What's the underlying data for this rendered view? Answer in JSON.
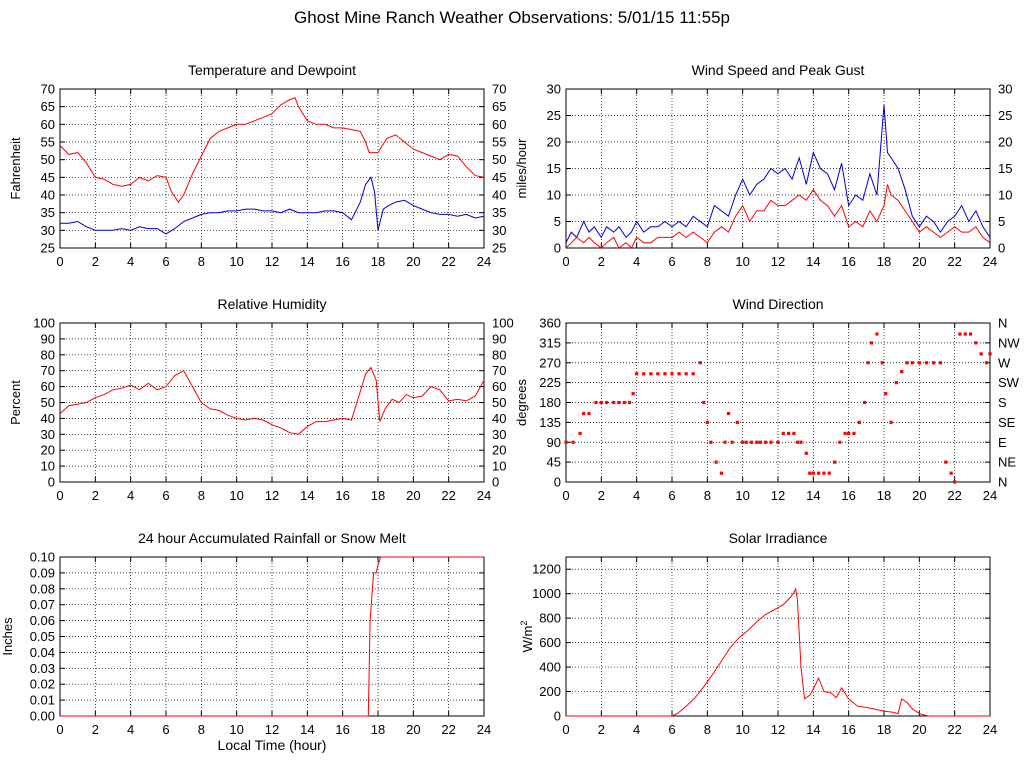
{
  "page": {
    "title": "Ghost Mine Ranch Weather Observations: 5/01/15 11:55p"
  },
  "colors": {
    "red": "#ff0000",
    "blue": "#0000cc",
    "grid": "#000000",
    "frame": "#000000"
  },
  "chart_data": [
    {
      "type": "line",
      "title": "Temperature and Dewpoint",
      "ylabel": "Fahrenheit",
      "xlabel": "",
      "xlim": [
        0,
        24
      ],
      "ylim": [
        25,
        70
      ],
      "x_ticks": [
        0,
        2,
        4,
        6,
        8,
        10,
        12,
        14,
        16,
        18,
        20,
        22,
        24
      ],
      "y_ticks": [
        25,
        30,
        35,
        40,
        45,
        50,
        55,
        60,
        65,
        70
      ],
      "right_axis": {
        "ticks": [
          25,
          30,
          35,
          40,
          45,
          50,
          55,
          60,
          65,
          70
        ]
      },
      "grid": true,
      "series": [
        {
          "color": "red",
          "x": [
            0,
            0.5,
            1,
            1.5,
            2,
            2.5,
            3,
            3.5,
            4,
            4.5,
            5,
            5.5,
            6,
            6.3,
            6.7,
            7,
            7.5,
            8,
            8.5,
            9,
            9.5,
            10,
            10.5,
            11,
            11.5,
            12,
            12.5,
            13,
            13.3,
            13.5,
            14,
            14.5,
            15,
            15.5,
            16,
            16.5,
            17,
            17.3,
            17.5,
            18,
            18.5,
            19,
            19.5,
            20,
            20.5,
            21,
            21.5,
            22,
            22.5,
            23,
            23.5,
            24
          ],
          "y": [
            54,
            51.5,
            52,
            49,
            45,
            44.5,
            43,
            42.5,
            43,
            45,
            44,
            45.5,
            45,
            41,
            38,
            40,
            46,
            51,
            56,
            58,
            59,
            60,
            60,
            61,
            62,
            63,
            65.5,
            67,
            67.5,
            65,
            61,
            60,
            60,
            59,
            59,
            58.5,
            58,
            55,
            52,
            52,
            56,
            57,
            55,
            53,
            52,
            51,
            50,
            51.5,
            51,
            48,
            45.5,
            45
          ]
        },
        {
          "color": "blue",
          "x": [
            0,
            0.5,
            1,
            1.5,
            2,
            2.5,
            3,
            3.5,
            4,
            4.5,
            5,
            5.5,
            6,
            6.5,
            7,
            7.5,
            8,
            8.5,
            9,
            9.5,
            10,
            10.5,
            11,
            11.5,
            12,
            12.5,
            13,
            13.5,
            14,
            14.5,
            15,
            15.5,
            16,
            16.5,
            17,
            17.3,
            17.6,
            17.8,
            18,
            18.3,
            18.6,
            19,
            19.5,
            20,
            20.5,
            21,
            21.5,
            22,
            22.5,
            23,
            23.5,
            24
          ],
          "y": [
            32,
            32,
            32.5,
            31,
            30,
            30,
            30,
            30.5,
            30,
            31,
            30.5,
            30.5,
            29,
            30.5,
            32.5,
            33.5,
            34.5,
            35,
            35,
            35.5,
            35.5,
            36,
            36,
            35.5,
            35.5,
            35,
            36,
            35,
            35,
            35,
            35.5,
            35.5,
            35,
            33,
            38,
            43,
            45,
            41,
            30,
            36,
            37,
            38,
            38.5,
            37,
            36,
            35,
            34.5,
            34.5,
            34,
            34.5,
            33.5,
            34
          ]
        }
      ]
    },
    {
      "type": "line",
      "title": "Wind Speed and Peak Gust",
      "ylabel": "miles/hour",
      "xlabel": "",
      "xlim": [
        0,
        24
      ],
      "ylim": [
        0,
        30
      ],
      "x_ticks": [
        0,
        2,
        4,
        6,
        8,
        10,
        12,
        14,
        16,
        18,
        20,
        22,
        24
      ],
      "y_ticks": [
        0,
        5,
        10,
        15,
        20,
        25,
        30
      ],
      "right_axis": {
        "ticks": [
          0,
          5,
          10,
          15,
          20,
          25,
          30
        ]
      },
      "grid": true,
      "series": [
        {
          "color": "blue",
          "x": [
            0,
            0.3,
            0.6,
            1,
            1.3,
            1.6,
            2,
            2.3,
            2.7,
            3,
            3.4,
            3.7,
            4,
            4.4,
            4.8,
            5.2,
            5.6,
            6,
            6.4,
            6.8,
            7.2,
            7.6,
            8,
            8.4,
            8.8,
            9.2,
            9.6,
            10,
            10.4,
            10.8,
            11.2,
            11.6,
            12,
            12.4,
            12.8,
            13.2,
            13.6,
            14,
            14.4,
            14.8,
            15.2,
            15.6,
            16,
            16.4,
            16.8,
            17.2,
            17.6,
            18,
            18.2,
            18.4,
            18.8,
            19.2,
            19.6,
            20,
            20.4,
            20.8,
            21.2,
            21.6,
            22,
            22.4,
            22.8,
            23.2,
            23.6,
            24
          ],
          "y": [
            1,
            3,
            2,
            5,
            3,
            4,
            2,
            4,
            3,
            4,
            2,
            3,
            5,
            3,
            4,
            4,
            5,
            4,
            5,
            4,
            6,
            5,
            4,
            8,
            7,
            6,
            10,
            13,
            10,
            12,
            13,
            15,
            14,
            15,
            13,
            17,
            12,
            18,
            15,
            14,
            11,
            16,
            8,
            10,
            9,
            14,
            10,
            27,
            18,
            17,
            15,
            11,
            6,
            4,
            6,
            5,
            3,
            5,
            6,
            8,
            5,
            7,
            4,
            2
          ]
        },
        {
          "color": "red",
          "x": [
            0,
            0.3,
            0.6,
            1,
            1.3,
            1.6,
            2,
            2.3,
            2.7,
            3,
            3.4,
            3.7,
            4,
            4.4,
            4.8,
            5.2,
            5.6,
            6,
            6.4,
            6.8,
            7.2,
            7.6,
            8,
            8.4,
            8.8,
            9.2,
            9.6,
            10,
            10.4,
            10.8,
            11.2,
            11.6,
            12,
            12.4,
            12.8,
            13.2,
            13.6,
            14,
            14.4,
            14.8,
            15.2,
            15.6,
            16,
            16.4,
            16.8,
            17.2,
            17.6,
            18,
            18.2,
            18.4,
            18.8,
            19.2,
            19.6,
            20,
            20.4,
            20.8,
            21.2,
            21.6,
            22,
            22.4,
            22.8,
            23.2,
            23.6,
            24
          ],
          "y": [
            0,
            1,
            2,
            1,
            2,
            1,
            0,
            1,
            2,
            0,
            1,
            0,
            2,
            1,
            1,
            2,
            2,
            2,
            3,
            2,
            3,
            2,
            1,
            3,
            4,
            3,
            6,
            8,
            5,
            7,
            7,
            9,
            8,
            8,
            9,
            10,
            9,
            11,
            9,
            8,
            6,
            8,
            4,
            5,
            4,
            7,
            5,
            8,
            12,
            10,
            9,
            7,
            5,
            3,
            4,
            3,
            2,
            3,
            4,
            3,
            3,
            4,
            2,
            1
          ]
        }
      ]
    },
    {
      "type": "line",
      "title": "Relative Humidity",
      "ylabel": "Percent",
      "xlabel": "",
      "xlim": [
        0,
        24
      ],
      "ylim": [
        0,
        100
      ],
      "x_ticks": [
        0,
        2,
        4,
        6,
        8,
        10,
        12,
        14,
        16,
        18,
        20,
        22,
        24
      ],
      "y_ticks": [
        0,
        10,
        20,
        30,
        40,
        50,
        60,
        70,
        80,
        90,
        100
      ],
      "right_axis": {
        "ticks": [
          0,
          10,
          20,
          30,
          40,
          50,
          60,
          70,
          80,
          90,
          100
        ]
      },
      "grid": true,
      "series": [
        {
          "color": "red",
          "x": [
            0,
            0.5,
            1,
            1.5,
            2,
            2.5,
            3,
            3.5,
            4,
            4.5,
            5,
            5.5,
            6,
            6.5,
            7,
            7.5,
            8,
            8.5,
            9,
            9.5,
            10,
            10.5,
            11,
            11.5,
            12,
            12.5,
            13,
            13.5,
            14,
            14.5,
            15,
            15.5,
            16,
            16.5,
            17,
            17.3,
            17.6,
            17.9,
            18.1,
            18.4,
            18.8,
            19.2,
            19.6,
            20,
            20.5,
            21,
            21.5,
            22,
            22.5,
            23,
            23.5,
            24
          ],
          "y": [
            43,
            48,
            49,
            50,
            53,
            55,
            58,
            59,
            61,
            58,
            62,
            58,
            60,
            67,
            70,
            60,
            50,
            46,
            45,
            42,
            40,
            39,
            40,
            39,
            36,
            34,
            31,
            30,
            35,
            38,
            38,
            39,
            40,
            39,
            57,
            68,
            72,
            64,
            38,
            46,
            52,
            50,
            55,
            53,
            54,
            60,
            58,
            51,
            52,
            51,
            54,
            64
          ]
        }
      ]
    },
    {
      "type": "scatter",
      "title": "Wind Direction",
      "ylabel": "degrees",
      "xlabel": "",
      "xlim": [
        0,
        24
      ],
      "ylim": [
        0,
        360
      ],
      "x_ticks": [
        0,
        2,
        4,
        6,
        8,
        10,
        12,
        14,
        16,
        18,
        20,
        22,
        24
      ],
      "y_ticks": [
        0,
        45,
        90,
        135,
        180,
        225,
        270,
        315,
        360
      ],
      "right_axis": {
        "ticks": [
          "N",
          "NE",
          "E",
          "SE",
          "S",
          "SW",
          "W",
          "NW",
          "N"
        ]
      },
      "grid": true,
      "series": [
        {
          "color": "red",
          "x": [
            0,
            0.4,
            0.8,
            1,
            1.3,
            1.7,
            2,
            2.3,
            2.7,
            3,
            3.3,
            3.6,
            3.8,
            4,
            4.4,
            4.8,
            5.2,
            5.6,
            6,
            6.4,
            6.8,
            7.2,
            7.6,
            7.8,
            8,
            8.2,
            8.5,
            8.8,
            9,
            9.2,
            9.4,
            9.7,
            10,
            10.2,
            10.5,
            10.8,
            11,
            11.3,
            11.6,
            12,
            12.3,
            12.6,
            12.9,
            13.1,
            13.3,
            13.6,
            13.8,
            14,
            14.3,
            14.6,
            14.9,
            15.2,
            15.5,
            15.8,
            16,
            16.3,
            16.6,
            16.9,
            17.1,
            17.3,
            17.6,
            17.9,
            18.1,
            18.4,
            18.7,
            19,
            19.3,
            19.6,
            20,
            20.4,
            20.8,
            21.2,
            21.5,
            21.8,
            22,
            22.3,
            22.6,
            22.9,
            23.2,
            23.5,
            23.8,
            24
          ],
          "y": [
            90,
            90,
            110,
            155,
            155,
            180,
            180,
            180,
            180,
            180,
            180,
            180,
            200,
            245,
            245,
            245,
            245,
            245,
            245,
            245,
            245,
            245,
            270,
            180,
            135,
            90,
            45,
            20,
            90,
            155,
            90,
            135,
            90,
            90,
            90,
            90,
            90,
            90,
            90,
            90,
            110,
            110,
            110,
            90,
            90,
            65,
            20,
            20,
            20,
            20,
            20,
            45,
            90,
            110,
            110,
            110,
            135,
            180,
            270,
            315,
            335,
            270,
            200,
            135,
            225,
            250,
            270,
            270,
            270,
            270,
            270,
            270,
            45,
            20,
            0,
            335,
            335,
            335,
            315,
            290,
            270,
            290
          ]
        }
      ]
    },
    {
      "type": "line",
      "title": "24 hour Accumulated Rainfall or Snow Melt",
      "ylabel": "Inches",
      "xlabel": "Local Time (hour)",
      "xlim": [
        0,
        24
      ],
      "ylim": [
        0,
        0.1
      ],
      "x_ticks": [
        0,
        2,
        4,
        6,
        8,
        10,
        12,
        14,
        16,
        18,
        20,
        22,
        24
      ],
      "y_ticks": [
        "0.00",
        "0.01",
        "0.02",
        "0.03",
        "0.04",
        "0.05",
        "0.06",
        "0.07",
        "0.08",
        "0.09",
        "0.10"
      ],
      "grid": true,
      "series": [
        {
          "color": "red",
          "x": [
            0,
            17.45,
            17.55,
            17.75,
            17.9,
            18.0,
            18.15,
            24
          ],
          "y": [
            0,
            0,
            0.06,
            0.09,
            0.09,
            0.095,
            0.1,
            0.1
          ]
        }
      ]
    },
    {
      "type": "line",
      "title": "Solar Irradiance",
      "ylabel": "W/m2",
      "xlabel": "",
      "xlim": [
        0,
        24
      ],
      "ylim": [
        0,
        1300
      ],
      "x_ticks": [
        0,
        2,
        4,
        6,
        8,
        10,
        12,
        14,
        16,
        18,
        20,
        22,
        24
      ],
      "y_ticks": [
        0,
        200,
        400,
        600,
        800,
        1000,
        1200
      ],
      "grid": true,
      "series": [
        {
          "color": "red",
          "x": [
            0,
            6,
            6.3,
            6.8,
            7.3,
            7.8,
            8.3,
            8.8,
            9.3,
            9.8,
            10.3,
            10.8,
            11.3,
            11.8,
            12.3,
            12.7,
            12.9,
            13.0,
            13.1,
            13.3,
            13.5,
            13.8,
            14.0,
            14.3,
            14.6,
            15.0,
            15.3,
            15.6,
            16.0,
            16.5,
            17.0,
            17.5,
            18.0,
            18.5,
            18.8,
            19.0,
            19.3,
            19.6,
            20.0,
            20.5,
            24
          ],
          "y": [
            0,
            0,
            20,
            80,
            150,
            240,
            340,
            450,
            560,
            640,
            700,
            770,
            830,
            870,
            910,
            970,
            1010,
            1040,
            950,
            400,
            140,
            170,
            220,
            310,
            200,
            190,
            150,
            230,
            140,
            80,
            70,
            55,
            40,
            30,
            20,
            140,
            110,
            60,
            20,
            0,
            0
          ]
        }
      ]
    }
  ]
}
